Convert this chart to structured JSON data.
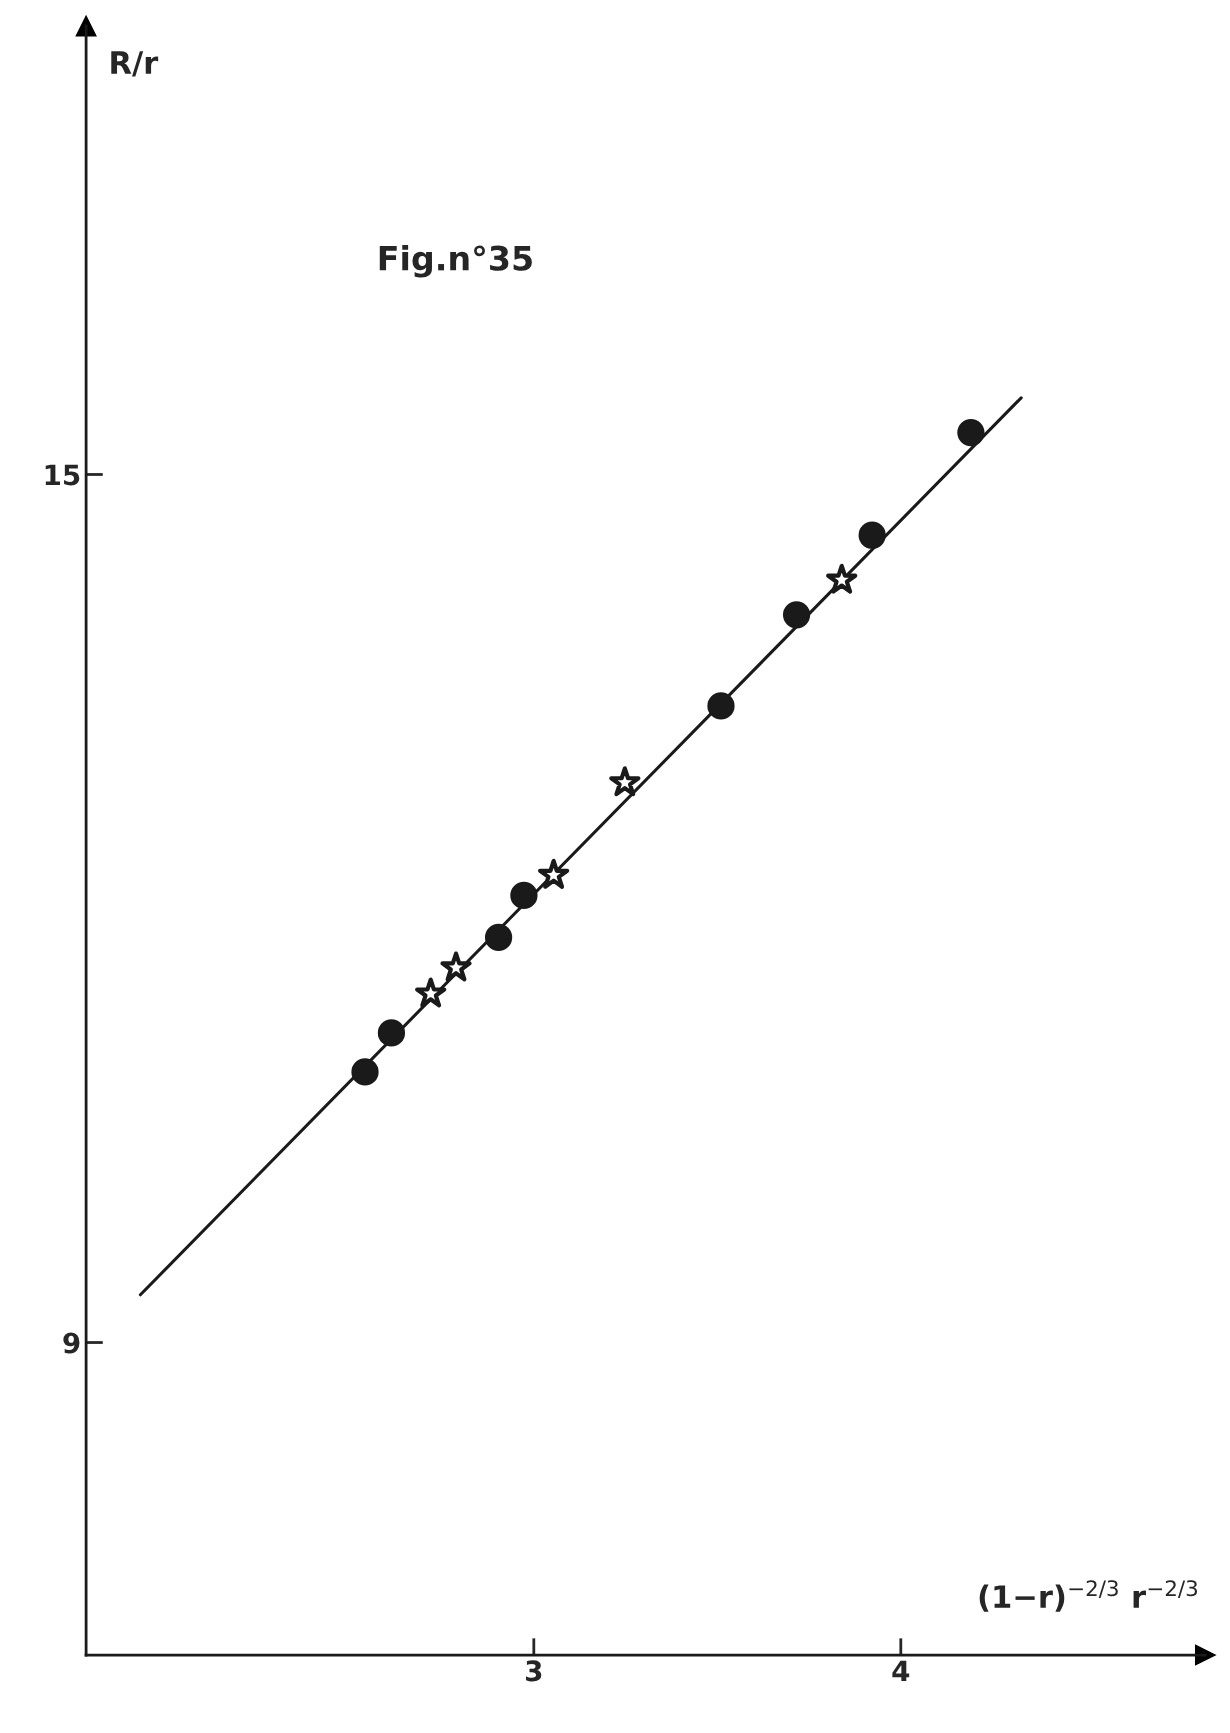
{
  "chart_data": {
    "type": "scatter",
    "title": "Fig.n°35",
    "xlabel": "(1−r)$^{−2/3}$ r$^{−2/3}$",
    "ylabel": "R/r",
    "xlim": [
      1.78,
      4.83
    ],
    "ylim": [
      6.84,
      18.1
    ],
    "xticks": [
      3,
      4
    ],
    "yticks": [
      9,
      15
    ],
    "grid": false,
    "legend": false,
    "series": [
      {
        "marker": "circle",
        "color": "#1a1a1a",
        "x": [
          2.54,
          2.612,
          2.904,
          2.973,
          3.51,
          3.716,
          3.922,
          4.191
        ],
        "values": [
          10.87,
          11.14,
          11.8,
          12.09,
          13.4,
          14.03,
          14.58,
          15.29
        ]
      },
      {
        "marker": "star",
        "color": "#1a1a1a",
        "x": [
          2.719,
          2.788,
          3.054,
          3.248,
          3.839
        ],
        "values": [
          11.41,
          11.59,
          12.23,
          12.87,
          14.27
        ]
      },
      {
        "type": "line",
        "marker": "none",
        "line_style": "solid",
        "color": "#1a1a1a",
        "x": [
          1.928,
          4.328
        ],
        "values": [
          9.33,
          15.53
        ]
      }
    ]
  }
}
